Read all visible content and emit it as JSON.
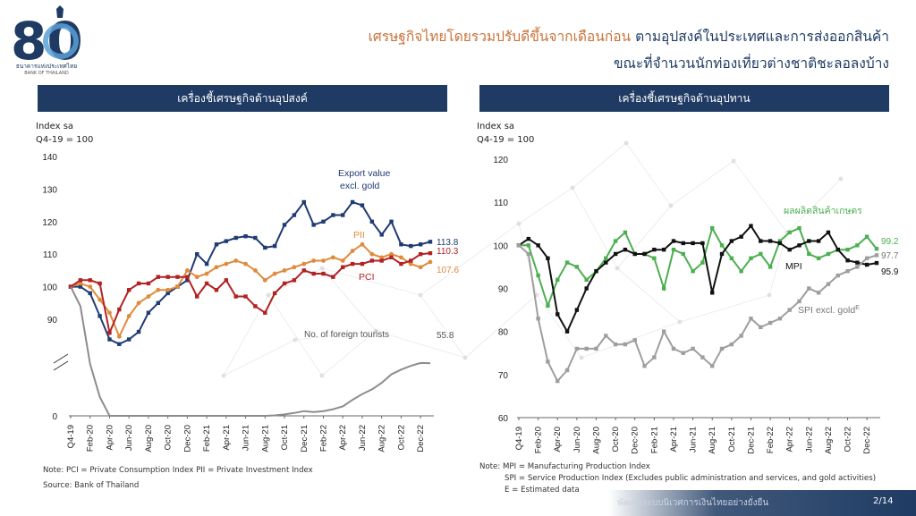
{
  "brand": {
    "logo_number": "80",
    "name_th": "ธนาคารแห่งประเทศไทย",
    "name_en": "BANK OF THAILAND"
  },
  "headline": {
    "line1_part1": "เศรษฐกิจไทยโดยรวมปรับดีขึ้นจากเดือนก่อน ",
    "line1_part2": "ตามอุปสงค์ในประเทศและการส่งออกสินค้า",
    "line2": "ขณะที่จำนวนนักท่องเที่ยวต่างชาติชะลอลงบ้าง"
  },
  "footer": {
    "text": "พัฒนาระบบนิเวศการเงินไทยอย่างยั่งยืน",
    "page": "2/14"
  },
  "chart_data": [
    {
      "type": "line",
      "panel_title": "เครื่องชี้เศรษฐกิจด้านอุปสงค์",
      "unit_line1": "Index sa",
      "unit_line2": "Q4-19 = 100",
      "ylim": [
        0,
        140
      ],
      "y_axis_break": true,
      "yticks": [
        "140",
        "130",
        "120",
        "110",
        "100",
        "90",
        "0"
      ],
      "xtick_labels": [
        "Q4-19",
        "Feb-20",
        "Apr-20",
        "Jun-20",
        "Aug-20",
        "Oct-20",
        "Dec-20",
        "Feb-21",
        "Apr-21",
        "Jun-21",
        "Aug-21",
        "Oct-21",
        "Dec-21",
        "Feb-22",
        "Apr-22",
        "Jun-22",
        "Aug-22",
        "Oct-22",
        "Dec-22"
      ],
      "x": [
        "Q4-19",
        "Jan-20",
        "Feb-20",
        "Mar-20",
        "Apr-20",
        "May-20",
        "Jun-20",
        "Jul-20",
        "Aug-20",
        "Sep-20",
        "Oct-20",
        "Nov-20",
        "Dec-20",
        "Jan-21",
        "Feb-21",
        "Mar-21",
        "Apr-21",
        "May-21",
        "Jun-21",
        "Jul-21",
        "Aug-21",
        "Sep-21",
        "Oct-21",
        "Nov-21",
        "Dec-21",
        "Jan-22",
        "Feb-22",
        "Mar-22",
        "Apr-22",
        "May-22",
        "Jun-22",
        "Jul-22",
        "Aug-22",
        "Sep-22",
        "Oct-22",
        "Nov-22",
        "Dec-22",
        "Jan-23"
      ],
      "series": [
        {
          "name": "Export value excl. gold",
          "label_line1": "Export value",
          "label_line2": "excl. gold",
          "end_label": "113.8",
          "color": "#1f3b73",
          "marker": "square",
          "values": [
            100,
            100,
            98,
            91,
            81,
            76,
            81,
            89,
            92,
            95,
            98,
            100,
            102,
            110,
            107,
            113,
            114,
            115,
            115.5,
            115,
            112,
            112.5,
            119,
            122,
            126,
            119,
            120,
            122,
            122,
            126,
            125,
            120,
            116,
            120,
            113,
            112.5,
            113,
            113.8
          ]
        },
        {
          "name": "PII",
          "label_line1": "PII",
          "end_label": "107.6",
          "color": "#e08a3c",
          "marker": "circle",
          "values": [
            100,
            101,
            100,
            96,
            92,
            84,
            91,
            95,
            97,
            99,
            99,
            100,
            105,
            103,
            104,
            106,
            107,
            108,
            107,
            105,
            102,
            104,
            105,
            106,
            107,
            108,
            108,
            109,
            108,
            111,
            113,
            110,
            109,
            110,
            109,
            107,
            106,
            107.6
          ]
        },
        {
          "name": "PCI",
          "label_line1": "PCI",
          "end_label": "110.3",
          "color": "#b22222",
          "marker": "square",
          "values": [
            100,
            102,
            102,
            101,
            88,
            93,
            99,
            101,
            101,
            103,
            103,
            103,
            103,
            97,
            101,
            99,
            102,
            97,
            97,
            94,
            92,
            98,
            101,
            102,
            105,
            104,
            104,
            103,
            106,
            107,
            107,
            108,
            108,
            109,
            107,
            108,
            110,
            110.3
          ]
        },
        {
          "name": "No. of foreign tourists",
          "label_line1": "No. of foreign tourists",
          "end_label": "55.8",
          "color": "#8c8c8c",
          "marker": "none",
          "values": [
            100,
            94,
            55,
            20,
            0,
            0,
            0,
            0,
            0,
            0,
            0,
            0,
            0,
            0,
            0,
            0,
            0,
            0,
            0,
            0,
            0,
            0.5,
            1.5,
            3,
            5,
            4,
            5,
            7,
            10,
            17,
            23,
            28,
            35,
            44,
            49,
            53,
            56,
            55.8
          ]
        }
      ]
    },
    {
      "type": "line",
      "panel_title": "เครื่องชี้เศรษฐกิจด้านอุปทาน",
      "unit_line1": "Index sa",
      "unit_line2": "Q4-19 = 100",
      "ylim": [
        60,
        120
      ],
      "yticks": [
        "120",
        "110",
        "100",
        "90",
        "80",
        "70",
        "60"
      ],
      "xtick_labels": [
        "Q4-19",
        "Feb-20",
        "Apr-20",
        "Jun-20",
        "Aug-20",
        "Oct-20",
        "Dec-20",
        "Feb-21",
        "Apr-21",
        "Jun-21",
        "Aug-21",
        "Oct-21",
        "Dec-21",
        "Feb-22",
        "Apr-22",
        "Jun-22",
        "Aug-22",
        "Oct-22",
        "Dec-22"
      ],
      "x": [
        "Q4-19",
        "Jan-20",
        "Feb-20",
        "Mar-20",
        "Apr-20",
        "May-20",
        "Jun-20",
        "Jul-20",
        "Aug-20",
        "Sep-20",
        "Oct-20",
        "Nov-20",
        "Dec-20",
        "Jan-21",
        "Feb-21",
        "Mar-21",
        "Apr-21",
        "May-21",
        "Jun-21",
        "Jul-21",
        "Aug-21",
        "Sep-21",
        "Oct-21",
        "Nov-21",
        "Dec-21",
        "Jan-22",
        "Feb-22",
        "Mar-22",
        "Apr-22",
        "May-22",
        "Jun-22",
        "Jul-22",
        "Aug-22",
        "Sep-22",
        "Oct-22",
        "Nov-22",
        "Dec-22",
        "Jan-23"
      ],
      "series": [
        {
          "name": "ผลผลิตสินค้าเกษตร",
          "label_line1": "ผลผลิตสินค้าเกษตร",
          "end_label": "99.2",
          "color": "#4caf50",
          "marker": "square",
          "values": [
            100,
            100,
            93,
            86,
            92,
            96,
            95,
            92,
            94,
            97,
            101,
            103,
            98,
            98,
            97,
            90,
            99,
            98,
            94,
            96,
            104,
            100,
            97,
            94,
            97,
            98,
            95,
            101,
            103,
            104,
            98,
            97,
            98,
            99,
            99,
            100,
            102,
            99.2
          ]
        },
        {
          "name": "MPI",
          "label_line1": "MPI",
          "end_label": "95.9",
          "color": "#111111",
          "marker": "square",
          "values": [
            100,
            101.5,
            100,
            97,
            84,
            80,
            85,
            90,
            94,
            96,
            98,
            99,
            98,
            98,
            99,
            99,
            101,
            100.5,
            100.5,
            100.5,
            89,
            98,
            101,
            102,
            104.5,
            101,
            101,
            100.5,
            99,
            100,
            101,
            101,
            103,
            99,
            96.5,
            96,
            95.5,
            95.9
          ]
        },
        {
          "name": "SPI excl. gold",
          "label_line1": "SPI excl. gold",
          "label_sup": "E",
          "end_label": "97.7",
          "color": "#9e9e9e",
          "marker": "square",
          "values": [
            100,
            98,
            83,
            73,
            68.5,
            71,
            76,
            76,
            76,
            79,
            77,
            77,
            78,
            72,
            74,
            80,
            76,
            75,
            76,
            74,
            72,
            76,
            77,
            79,
            83,
            81,
            82,
            83,
            85,
            87,
            90,
            89,
            91,
            93,
            94,
            95,
            97,
            97.7
          ]
        }
      ]
    }
  ],
  "notes": {
    "left_line1": "Note: PCI = Private Consumption Index    PII = Private Investment Index",
    "left_line2": "Source: Bank of Thailand",
    "right_line1": "Note: MPI = Manufacturing Production Index",
    "right_line2": "SPI = Service Production Index (Excludes public administration and services, and gold activities)",
    "right_line3": "E = Estimated data"
  }
}
